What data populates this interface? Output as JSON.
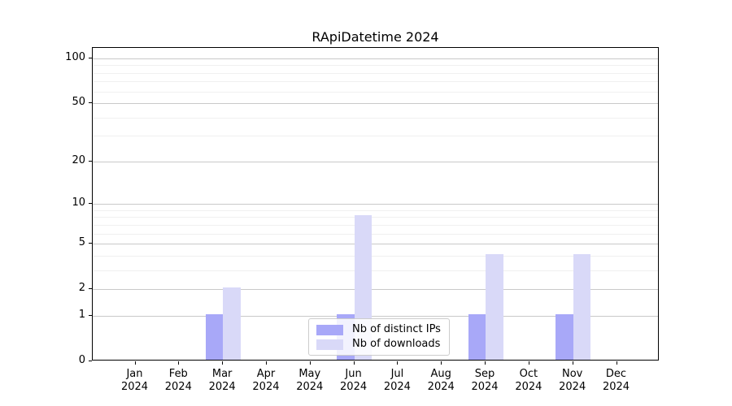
{
  "chart_data": {
    "type": "bar",
    "title": "RApiDatetime 2024",
    "categories": [
      "Jan",
      "Feb",
      "Mar",
      "Apr",
      "May",
      "Jun",
      "Jul",
      "Aug",
      "Sep",
      "Oct",
      "Nov",
      "Dec"
    ],
    "x_year": "2024",
    "series": [
      {
        "name": "Nb of distinct IPs",
        "color": "#a8a8f8",
        "values": [
          0,
          0,
          1,
          0,
          0,
          1,
          0,
          0,
          1,
          0,
          1,
          0
        ]
      },
      {
        "name": "Nb of downloads",
        "color": "#d9d9f8",
        "values": [
          0,
          0,
          2,
          0,
          0,
          8,
          0,
          0,
          4,
          0,
          4,
          0
        ]
      }
    ],
    "yscale": "log1p",
    "ylim": [
      0,
      117.6
    ],
    "y_ticks": [
      0,
      1,
      2,
      5,
      10,
      20,
      50,
      100
    ],
    "y_minor_gridlines": [
      3,
      4,
      6,
      7,
      8,
      9,
      30,
      40,
      60,
      70,
      80,
      90
    ],
    "grid": "horizontal",
    "legend_position": "lower-center",
    "colors": {
      "major_grid": "#c9c9c9",
      "minor_grid": "#f0f0f0",
      "axis": "#000000",
      "text": "#000000"
    }
  }
}
